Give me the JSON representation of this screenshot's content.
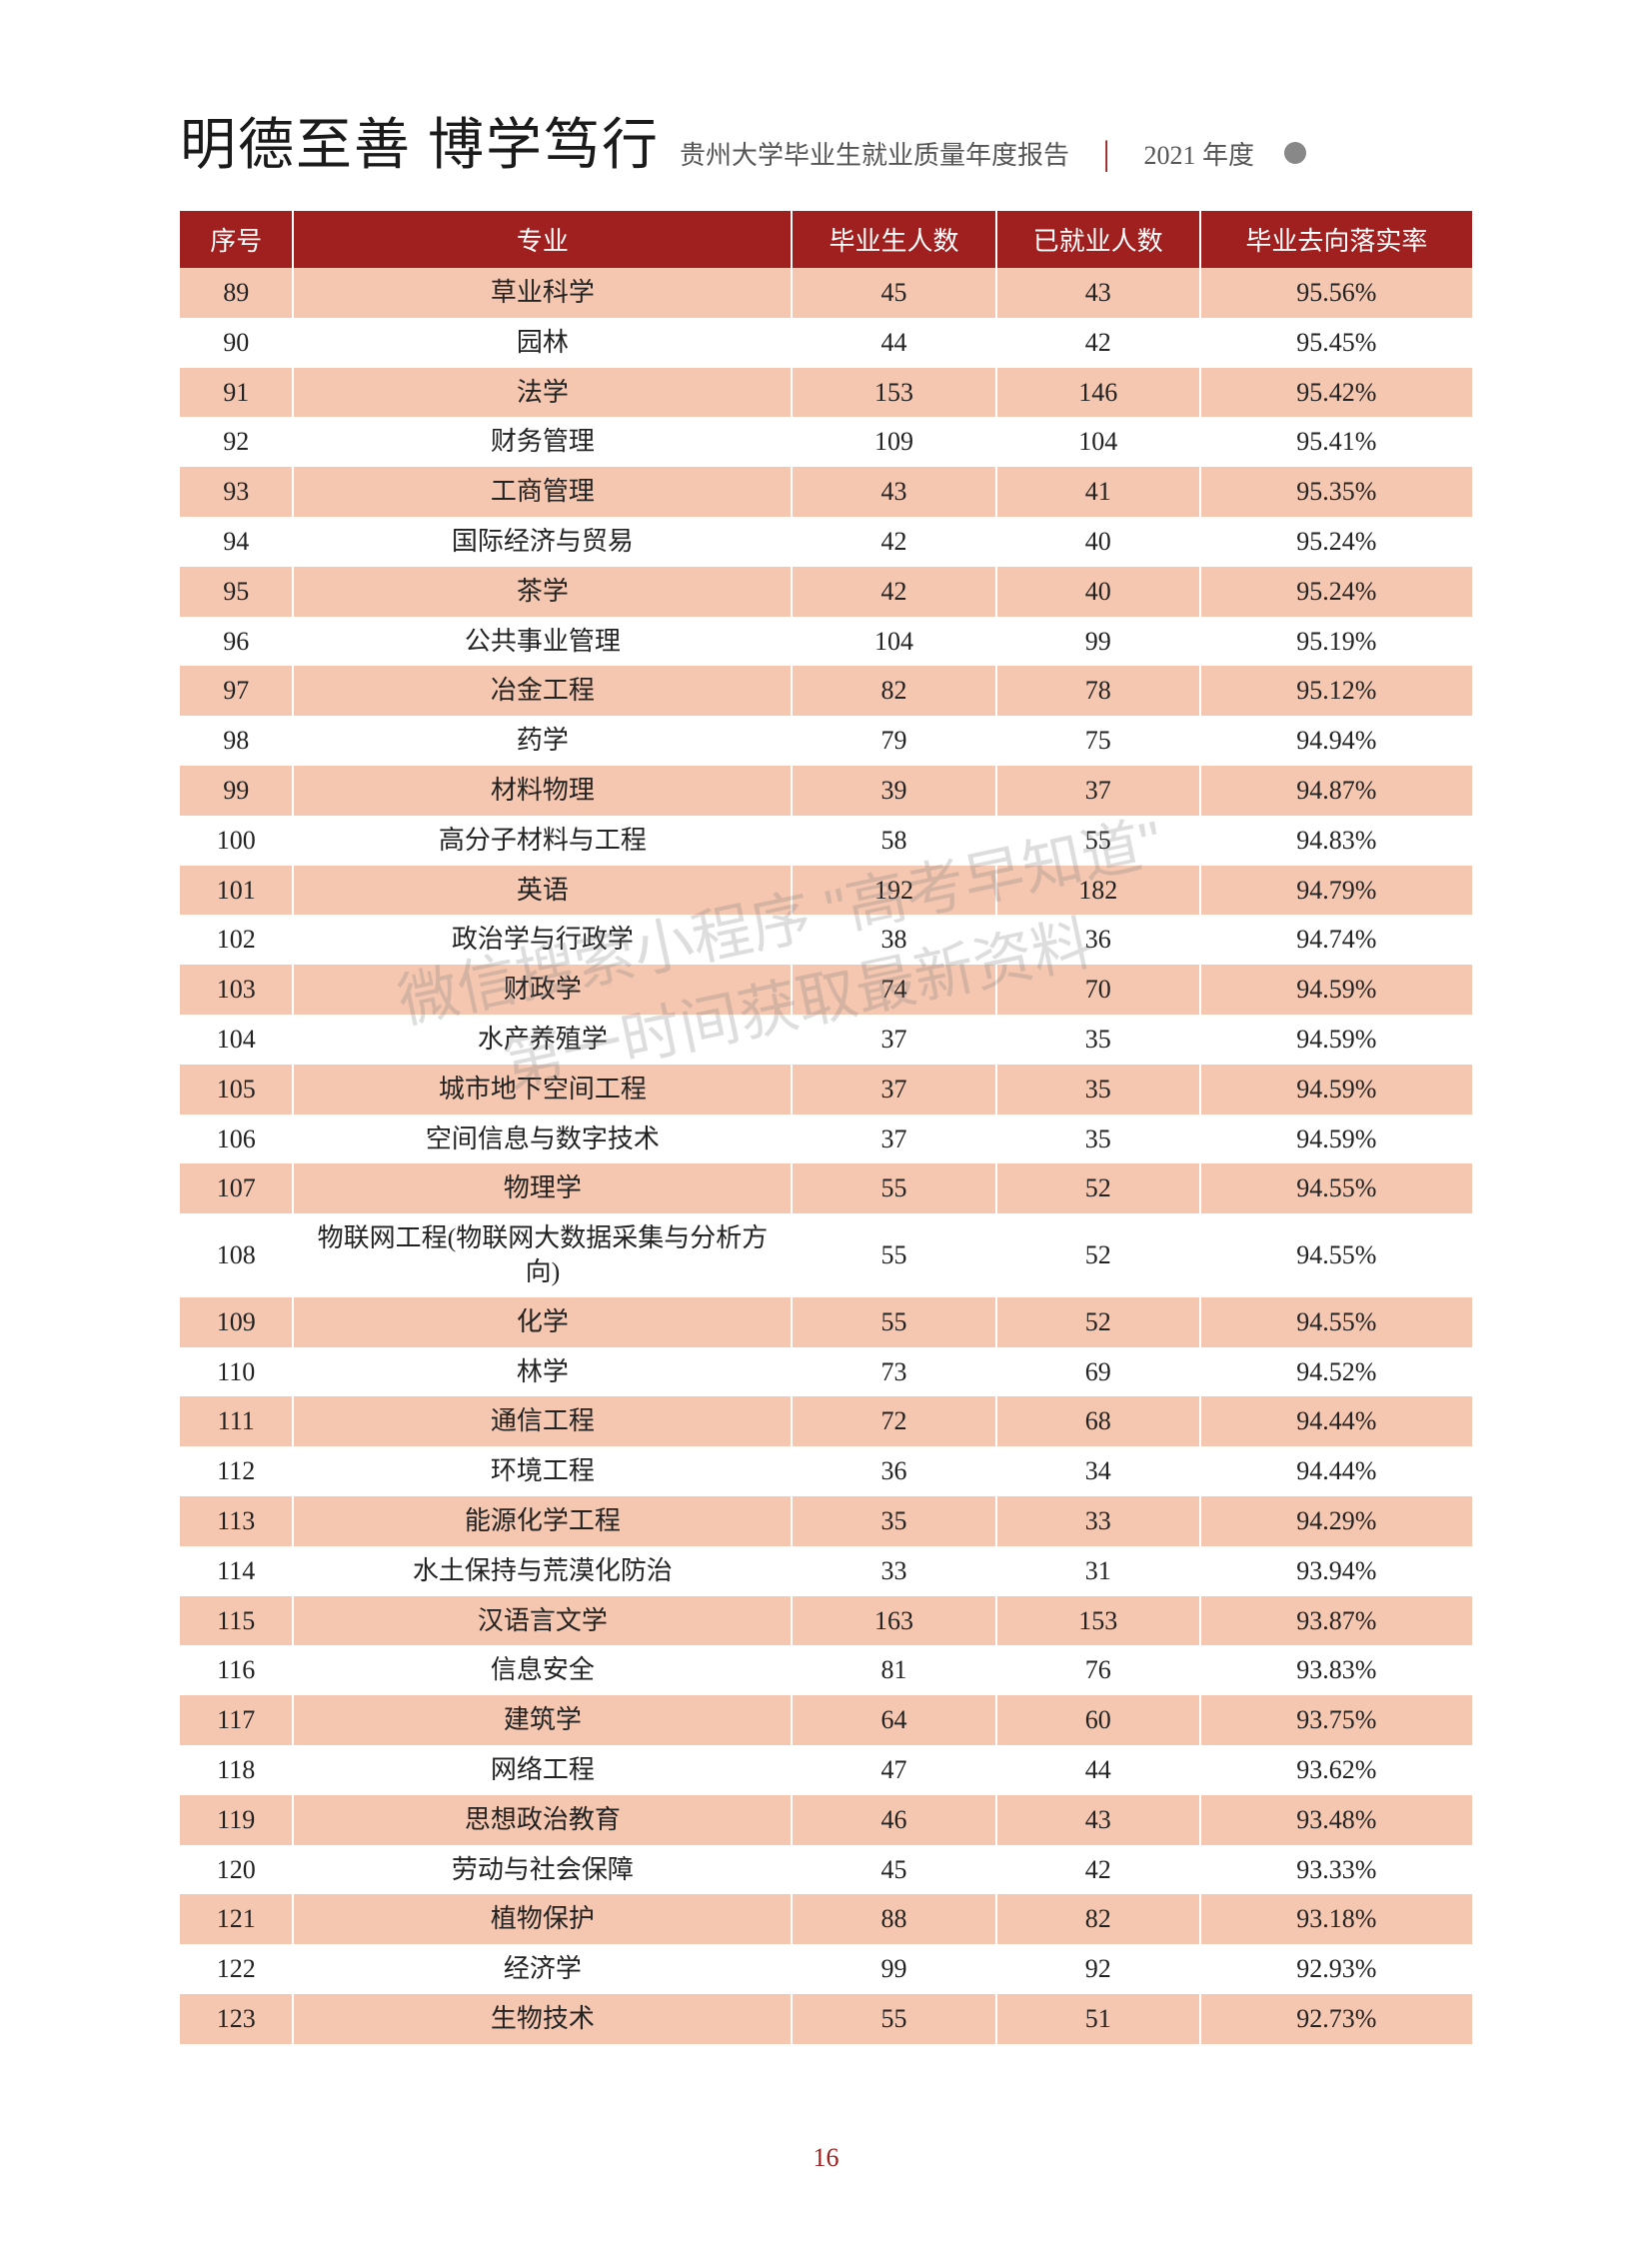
{
  "header": {
    "calligraphy": "明德至善 博学笃行",
    "report_title": "贵州大学毕业生就业质量年度报告",
    "year": "2021 年度"
  },
  "table": {
    "columns": [
      "序号",
      "专业",
      "毕业生人数",
      "已就业人数",
      "毕业去向落实率"
    ],
    "col_widths": [
      "100px",
      "440px",
      "180px",
      "180px",
      "240px"
    ],
    "header_bg": "#a02020",
    "header_fg": "#ffffff",
    "row_odd_bg": "#f5c7b0",
    "row_even_bg": "#ffffff",
    "rows": [
      {
        "seq": "89",
        "major": "草业科学",
        "grad": "45",
        "emp": "43",
        "rate": "95.56%"
      },
      {
        "seq": "90",
        "major": "园林",
        "grad": "44",
        "emp": "42",
        "rate": "95.45%"
      },
      {
        "seq": "91",
        "major": "法学",
        "grad": "153",
        "emp": "146",
        "rate": "95.42%"
      },
      {
        "seq": "92",
        "major": "财务管理",
        "grad": "109",
        "emp": "104",
        "rate": "95.41%"
      },
      {
        "seq": "93",
        "major": "工商管理",
        "grad": "43",
        "emp": "41",
        "rate": "95.35%"
      },
      {
        "seq": "94",
        "major": "国际经济与贸易",
        "grad": "42",
        "emp": "40",
        "rate": "95.24%"
      },
      {
        "seq": "95",
        "major": "茶学",
        "grad": "42",
        "emp": "40",
        "rate": "95.24%"
      },
      {
        "seq": "96",
        "major": "公共事业管理",
        "grad": "104",
        "emp": "99",
        "rate": "95.19%"
      },
      {
        "seq": "97",
        "major": "冶金工程",
        "grad": "82",
        "emp": "78",
        "rate": "95.12%"
      },
      {
        "seq": "98",
        "major": "药学",
        "grad": "79",
        "emp": "75",
        "rate": "94.94%"
      },
      {
        "seq": "99",
        "major": "材料物理",
        "grad": "39",
        "emp": "37",
        "rate": "94.87%"
      },
      {
        "seq": "100",
        "major": "高分子材料与工程",
        "grad": "58",
        "emp": "55",
        "rate": "94.83%"
      },
      {
        "seq": "101",
        "major": "英语",
        "grad": "192",
        "emp": "182",
        "rate": "94.79%"
      },
      {
        "seq": "102",
        "major": "政治学与行政学",
        "grad": "38",
        "emp": "36",
        "rate": "94.74%"
      },
      {
        "seq": "103",
        "major": "财政学",
        "grad": "74",
        "emp": "70",
        "rate": "94.59%"
      },
      {
        "seq": "104",
        "major": "水产养殖学",
        "grad": "37",
        "emp": "35",
        "rate": "94.59%"
      },
      {
        "seq": "105",
        "major": "城市地下空间工程",
        "grad": "37",
        "emp": "35",
        "rate": "94.59%"
      },
      {
        "seq": "106",
        "major": "空间信息与数字技术",
        "grad": "37",
        "emp": "35",
        "rate": "94.59%"
      },
      {
        "seq": "107",
        "major": "物理学",
        "grad": "55",
        "emp": "52",
        "rate": "94.55%"
      },
      {
        "seq": "108",
        "major": "物联网工程(物联网大数据采集与分析方向)",
        "grad": "55",
        "emp": "52",
        "rate": "94.55%"
      },
      {
        "seq": "109",
        "major": "化学",
        "grad": "55",
        "emp": "52",
        "rate": "94.55%"
      },
      {
        "seq": "110",
        "major": "林学",
        "grad": "73",
        "emp": "69",
        "rate": "94.52%"
      },
      {
        "seq": "111",
        "major": "通信工程",
        "grad": "72",
        "emp": "68",
        "rate": "94.44%"
      },
      {
        "seq": "112",
        "major": "环境工程",
        "grad": "36",
        "emp": "34",
        "rate": "94.44%"
      },
      {
        "seq": "113",
        "major": "能源化学工程",
        "grad": "35",
        "emp": "33",
        "rate": "94.29%"
      },
      {
        "seq": "114",
        "major": "水土保持与荒漠化防治",
        "grad": "33",
        "emp": "31",
        "rate": "93.94%"
      },
      {
        "seq": "115",
        "major": "汉语言文学",
        "grad": "163",
        "emp": "153",
        "rate": "93.87%"
      },
      {
        "seq": "116",
        "major": "信息安全",
        "grad": "81",
        "emp": "76",
        "rate": "93.83%"
      },
      {
        "seq": "117",
        "major": "建筑学",
        "grad": "64",
        "emp": "60",
        "rate": "93.75%"
      },
      {
        "seq": "118",
        "major": "网络工程",
        "grad": "47",
        "emp": "44",
        "rate": "93.62%"
      },
      {
        "seq": "119",
        "major": "思想政治教育",
        "grad": "46",
        "emp": "43",
        "rate": "93.48%"
      },
      {
        "seq": "120",
        "major": "劳动与社会保障",
        "grad": "45",
        "emp": "42",
        "rate": "93.33%"
      },
      {
        "seq": "121",
        "major": "植物保护",
        "grad": "88",
        "emp": "82",
        "rate": "93.18%"
      },
      {
        "seq": "122",
        "major": "经济学",
        "grad": "99",
        "emp": "92",
        "rate": "92.93%"
      },
      {
        "seq": "123",
        "major": "生物技术",
        "grad": "55",
        "emp": "51",
        "rate": "92.73%"
      }
    ]
  },
  "watermark": {
    "line1": "微信搜索小程序 \"高考早知道\"",
    "line2": "第一时间获取最新资料"
  },
  "page_number": "16"
}
